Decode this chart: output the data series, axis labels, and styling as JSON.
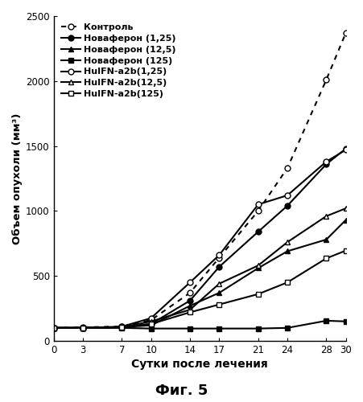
{
  "x": [
    0,
    3,
    7,
    10,
    14,
    17,
    21,
    24,
    28,
    30
  ],
  "series": [
    {
      "label": "Контроль",
      "y": [
        100,
        105,
        110,
        160,
        370,
        640,
        1000,
        1330,
        2010,
        2370
      ],
      "linestyle": "dotted",
      "marker": "o",
      "markerfacecolor": "white",
      "linewidth": 1.5,
      "markersize": 5
    },
    {
      "label": "Новаферон (1,25)",
      "y": [
        100,
        100,
        105,
        130,
        310,
        570,
        840,
        1040,
        1360,
        1480
      ],
      "linestyle": "solid",
      "marker": "o",
      "markerfacecolor": "black",
      "linewidth": 1.5,
      "markersize": 5
    },
    {
      "label": "Новаферон (12,5)",
      "y": [
        100,
        100,
        105,
        120,
        270,
        370,
        560,
        690,
        780,
        930
      ],
      "linestyle": "solid",
      "marker": "^",
      "markerfacecolor": "black",
      "linewidth": 1.5,
      "markersize": 5
    },
    {
      "label": "Новаферон (125)",
      "y": [
        100,
        100,
        100,
        95,
        95,
        95,
        95,
        100,
        155,
        150
      ],
      "linestyle": "solid",
      "marker": "s",
      "markerfacecolor": "black",
      "linewidth": 1.5,
      "markersize": 5
    },
    {
      "label": "HuIFN-a2b(1,25)",
      "y": [
        100,
        100,
        110,
        175,
        450,
        660,
        1050,
        1120,
        1380,
        1470
      ],
      "linestyle": "solid",
      "marker": "o",
      "markerfacecolor": "white",
      "linewidth": 1.5,
      "markersize": 5
    },
    {
      "label": "HuIFN-a2b(12,5)",
      "y": [
        100,
        100,
        105,
        150,
        240,
        440,
        580,
        760,
        960,
        1020
      ],
      "linestyle": "solid",
      "marker": "^",
      "markerfacecolor": "white",
      "linewidth": 1.5,
      "markersize": 5
    },
    {
      "label": "HuIFN-a2b(125)",
      "y": [
        100,
        100,
        105,
        130,
        220,
        280,
        360,
        450,
        635,
        695
      ],
      "linestyle": "solid",
      "marker": "s",
      "markerfacecolor": "white",
      "linewidth": 1.5,
      "markersize": 5
    }
  ],
  "xlabel": "Сутки после лечения",
  "ylabel": "Объем опухоли (мм³)",
  "caption": "Фиг. 5",
  "xlim": [
    0,
    30
  ],
  "ylim": [
    0,
    2500
  ],
  "xticks": [
    0,
    3,
    7,
    10,
    14,
    17,
    21,
    24,
    28,
    30
  ],
  "yticks": [
    0,
    500,
    1000,
    1500,
    2000,
    2500
  ],
  "figsize": [
    4.52,
    5.0
  ],
  "dpi": 100
}
